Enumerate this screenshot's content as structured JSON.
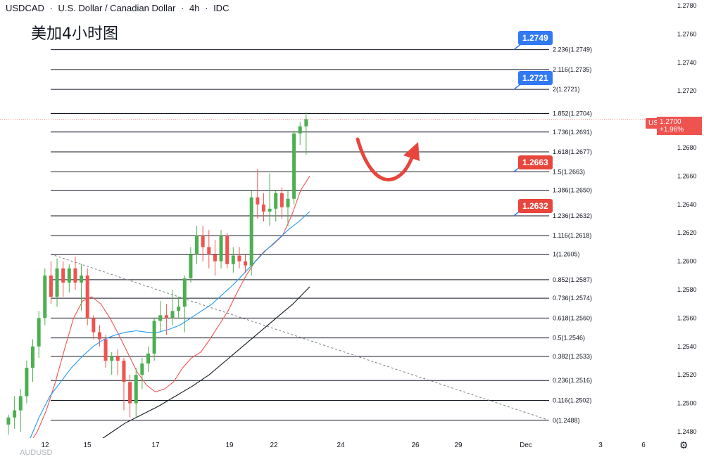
{
  "header": {
    "symbol": "USDCAD",
    "sep1": "·",
    "name": "U.S. Dollar / Canadian Dollar",
    "sep2": "·",
    "timeframe": "4h",
    "sep3": "·",
    "source": "IDC"
  },
  "annotation": "美加4小时图",
  "badges": {
    "b1": "1.2749",
    "b2": "1.2721",
    "b3": "1.2663",
    "b4": "1.2632"
  },
  "price_tag": {
    "symbol": "USDCAD",
    "price": "1.2700",
    "change": "+1.96%"
  },
  "bottom_partial": "AUDUSD",
  "colors": {
    "up": "#4caf50",
    "down": "#ef5350",
    "ma_fast": "#ef5350",
    "ma_mid": "#2196f3",
    "ma_slow": "#131722",
    "fib": "#131722",
    "badge_blue": "#3179f5",
    "badge_red": "#e8453c"
  },
  "chart_data": {
    "type": "candlestick",
    "symbol": "USDCAD",
    "interval": "4h",
    "ylim": [
      1.2478,
      1.278
    ],
    "y_ticks": [
      "1.2780",
      "1.2760",
      "1.2740",
      "1.2720",
      "1.2700",
      "1.2680",
      "1.2660",
      "1.2640",
      "1.2620",
      "1.2600",
      "1.2580",
      "1.2560",
      "1.2540",
      "1.2520",
      "1.2500",
      "1.2480"
    ],
    "x_ticks": [
      "12",
      "15",
      "17",
      "19",
      "22",
      "24",
      "26",
      "29",
      "Dec",
      "3",
      "6"
    ],
    "fib_levels": [
      {
        "label": "2.236(1.2749)",
        "value": 1.2749
      },
      {
        "label": "2.116(1.2735)",
        "value": 1.2735
      },
      {
        "label": "2(1.2721)",
        "value": 1.2721
      },
      {
        "label": "1.852(1.2704)",
        "value": 1.2704
      },
      {
        "label": "1.736(1.2691)",
        "value": 1.2691
      },
      {
        "label": "1.618(1.2677)",
        "value": 1.2677
      },
      {
        "label": "1.5(1.2663)",
        "value": 1.2663
      },
      {
        "label": "1.386(1.2650)",
        "value": 1.265
      },
      {
        "label": "1.236(1.2632)",
        "value": 1.2632
      },
      {
        "label": "1.116(1.2618)",
        "value": 1.2618
      },
      {
        "label": "1(1.2605)",
        "value": 1.2605
      },
      {
        "label": "0.852(1.2587)",
        "value": 1.2587
      },
      {
        "label": "0.736(1.2574)",
        "value": 1.2574
      },
      {
        "label": "0.618(1.2560)",
        "value": 1.256
      },
      {
        "label": "0.5(1.2546)",
        "value": 1.2546
      },
      {
        "label": "0.382(1.2533)",
        "value": 1.2533
      },
      {
        "label": "0.236(1.2516)",
        "value": 1.2516
      },
      {
        "label": "0.116(1.2502)",
        "value": 1.2502
      },
      {
        "label": "0(1.2488)",
        "value": 1.2488
      }
    ],
    "candles": [
      [
        1.2485,
        1.2492,
        1.2478,
        1.249
      ],
      [
        1.249,
        1.2505,
        1.2482,
        1.2495
      ],
      [
        1.2495,
        1.251,
        1.248,
        1.2505
      ],
      [
        1.2505,
        1.253,
        1.25,
        1.2525
      ],
      [
        1.2525,
        1.2545,
        1.2515,
        1.254
      ],
      [
        1.254,
        1.2565,
        1.2532,
        1.256
      ],
      [
        1.256,
        1.2595,
        1.2555,
        1.259
      ],
      [
        1.259,
        1.26,
        1.257,
        1.2575
      ],
      [
        1.2575,
        1.2602,
        1.2568,
        1.2595
      ],
      [
        1.2595,
        1.26,
        1.2575,
        1.2585
      ],
      [
        1.2585,
        1.2598,
        1.2578,
        1.2595
      ],
      [
        1.2595,
        1.2603,
        1.258,
        1.2585
      ],
      [
        1.2585,
        1.2598,
        1.2565,
        1.259
      ],
      [
        1.259,
        1.2595,
        1.2555,
        1.256
      ],
      [
        1.256,
        1.2562,
        1.2545,
        1.255
      ],
      [
        1.255,
        1.2555,
        1.254,
        1.2545
      ],
      [
        1.2545,
        1.2548,
        1.2525,
        1.253
      ],
      [
        1.253,
        1.2536,
        1.252,
        1.2533
      ],
      [
        1.2533,
        1.2538,
        1.252,
        1.253
      ],
      [
        1.253,
        1.2532,
        1.2495,
        1.2515
      ],
      [
        1.2515,
        1.252,
        1.249,
        1.25
      ],
      [
        1.25,
        1.2525,
        1.249,
        1.252
      ],
      [
        1.252,
        1.2532,
        1.251,
        1.2528
      ],
      [
        1.2528,
        1.254,
        1.2522,
        1.2535
      ],
      [
        1.2535,
        1.256,
        1.253,
        1.2558
      ],
      [
        1.2558,
        1.2572,
        1.255,
        1.2562
      ],
      [
        1.2562,
        1.257,
        1.2548,
        1.256
      ],
      [
        1.256,
        1.258,
        1.2555,
        1.2565
      ],
      [
        1.2565,
        1.2575,
        1.256,
        1.2568
      ],
      [
        1.2568,
        1.259,
        1.255,
        1.2588
      ],
      [
        1.2588,
        1.261,
        1.2585,
        1.2605
      ],
      [
        1.2605,
        1.2625,
        1.2598,
        1.2618
      ],
      [
        1.2618,
        1.2625,
        1.26,
        1.261
      ],
      [
        1.261,
        1.2622,
        1.2595,
        1.2605
      ],
      [
        1.2605,
        1.2615,
        1.259,
        1.26
      ],
      [
        1.26,
        1.2622,
        1.2595,
        1.2618
      ],
      [
        1.2618,
        1.262,
        1.2595,
        1.2598
      ],
      [
        1.2598,
        1.261,
        1.2592,
        1.2604
      ],
      [
        1.2604,
        1.261,
        1.2595,
        1.26
      ],
      [
        1.26,
        1.2605,
        1.2592,
        1.2597
      ],
      [
        1.2597,
        1.265,
        1.259,
        1.2645
      ],
      [
        1.2645,
        1.2665,
        1.263,
        1.264
      ],
      [
        1.264,
        1.2648,
        1.2628,
        1.2635
      ],
      [
        1.2635,
        1.2662,
        1.2625,
        1.2637
      ],
      [
        1.2637,
        1.265,
        1.2628,
        1.2648
      ],
      [
        1.2648,
        1.2652,
        1.263,
        1.2638
      ],
      [
        1.2638,
        1.265,
        1.2625,
        1.2644
      ],
      [
        1.2644,
        1.2692,
        1.264,
        1.269
      ],
      [
        1.269,
        1.2698,
        1.2682,
        1.2695
      ],
      [
        1.2695,
        1.2705,
        1.2675,
        1.27
      ]
    ],
    "ma_fast": [
      1.247,
      1.248,
      1.2495,
      1.2515,
      1.2538,
      1.256,
      1.2572,
      1.2575,
      1.257,
      1.256,
      1.2548,
      1.2535,
      1.2522,
      1.2513,
      1.2508,
      1.251,
      1.2515,
      1.2525,
      1.2532,
      1.2536,
      1.2545,
      1.2555,
      1.2565,
      1.2578,
      1.259,
      1.26,
      1.2607,
      1.2612,
      1.2618,
      1.2632,
      1.265,
      1.266
    ],
    "ma_mid": [
      1.2472,
      1.249,
      1.2505,
      1.2515,
      1.2525,
      1.2533,
      1.254,
      1.2545,
      1.2548,
      1.255,
      1.2551,
      1.255,
      1.255,
      1.2552,
      1.2555,
      1.256,
      1.2565,
      1.257,
      1.2577,
      1.2584,
      1.2592,
      1.26,
      1.2608,
      1.2615,
      1.2622,
      1.2628,
      1.2635
    ],
    "ma_slow": [
      1.247,
      1.2478,
      1.2486,
      1.2492,
      1.2498,
      1.2505,
      1.2512,
      1.252,
      1.253,
      1.254,
      1.255,
      1.256,
      1.257,
      1.2582
    ]
  }
}
